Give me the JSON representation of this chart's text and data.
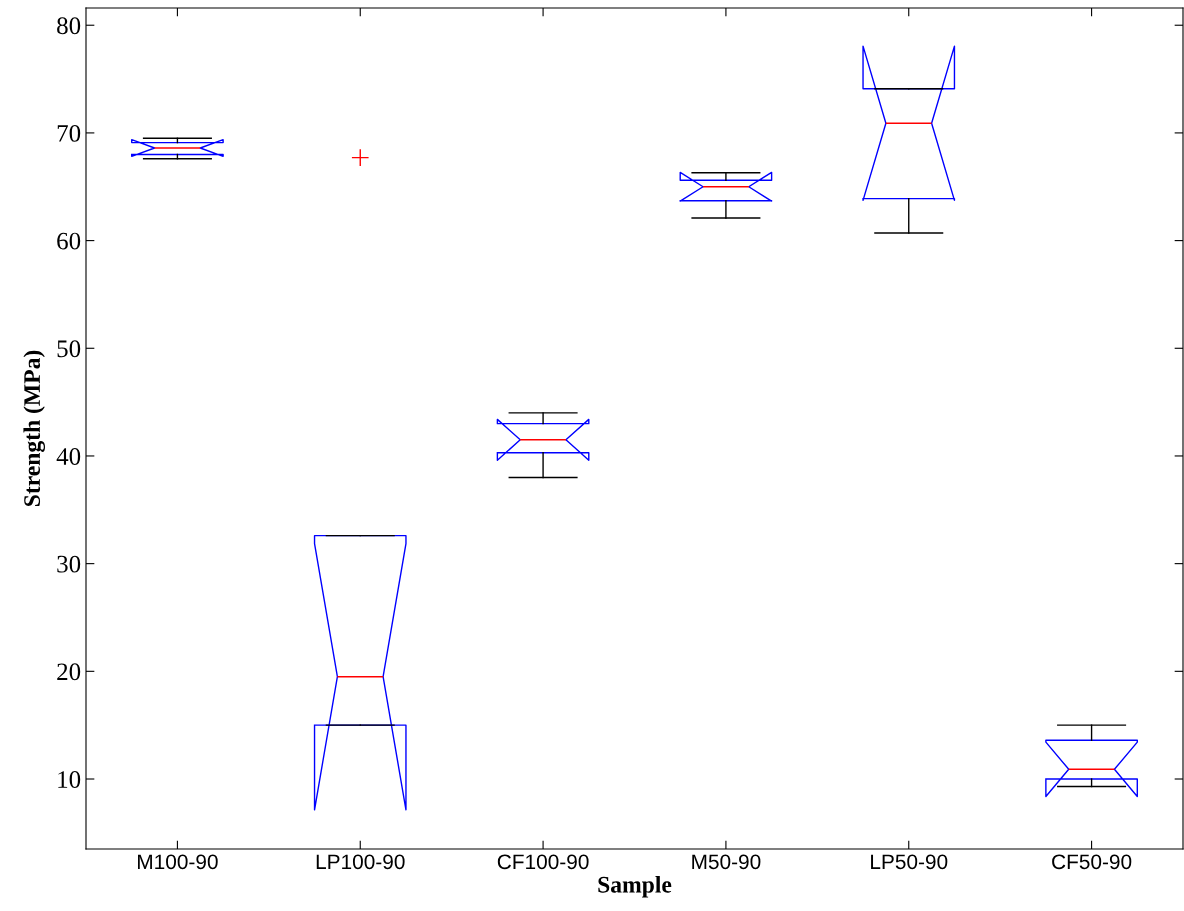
{
  "chart_data": {
    "type": "box",
    "xlabel": "Sample",
    "ylabel": "Strength (MPa)",
    "categories": [
      "M100-90",
      "LP100-90",
      "CF100-90",
      "M50-90",
      "LP50-90",
      "CF50-90"
    ],
    "boxes": [
      {
        "low": 67.6,
        "q1": 68.0,
        "median": 68.6,
        "q3": 69.1,
        "high": 69.5
      },
      {
        "low": 15.0,
        "q1": 15.0,
        "median": 19.5,
        "q3": 32.6,
        "high": 32.6,
        "outliers": [
          67.7
        ]
      },
      {
        "low": 38.0,
        "q1": 40.3,
        "median": 41.5,
        "q3": 43.0,
        "high": 44.0
      },
      {
        "low": 62.1,
        "q1": 63.7,
        "median": 65.0,
        "q3": 65.6,
        "high": 66.3
      },
      {
        "low": 60.7,
        "q1": 63.9,
        "median": 70.9,
        "q3": 74.1,
        "high": 74.1
      },
      {
        "low": 9.3,
        "q1": 10.0,
        "median": 10.9,
        "q3": 13.6,
        "high": 15.0
      }
    ],
    "ylim": [
      3.5,
      81.6
    ],
    "yticks": [
      10,
      20,
      30,
      40,
      50,
      60,
      70,
      80
    ],
    "grid": false
  }
}
